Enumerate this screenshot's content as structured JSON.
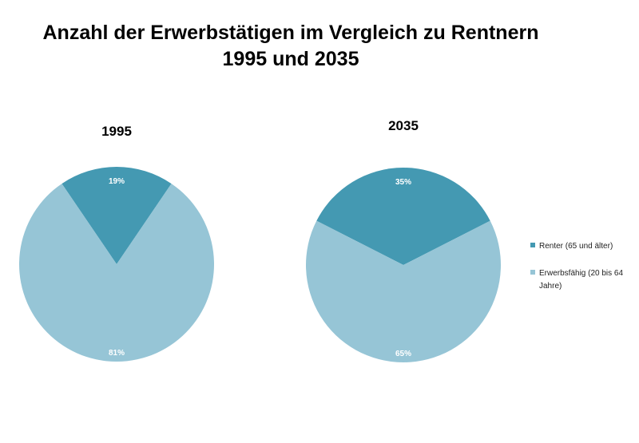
{
  "chart_data": {
    "type": "pie",
    "title_lines": [
      "Anzahl der Erwerbstätigen im Vergleich zu Rentnern",
      "1995 und 2035"
    ],
    "legend": {
      "placement": "right",
      "entries": [
        {
          "lines": [
            "Renter (65 und älter)"
          ],
          "color": "#4499b2"
        },
        {
          "lines": [
            "Erwerbsfähig (20 bis 64",
            "Jahre)"
          ],
          "color": "#96c5d6"
        }
      ]
    },
    "charts": [
      {
        "title": "1995",
        "slices": [
          {
            "category": "Renter (65 und älter)",
            "value": 19,
            "label": "19%",
            "color": "#4499b2"
          },
          {
            "category": "Erwerbsfähig (20 bis 64 Jahre)",
            "value": 81,
            "label": "81%",
            "color": "#96c5d6"
          }
        ]
      },
      {
        "title": "2035",
        "slices": [
          {
            "category": "Renter (65 und älter)",
            "value": 35,
            "label": "35%",
            "color": "#4499b2"
          },
          {
            "category": "Erwerbsfähig (20 bis 64 Jahre)",
            "value": 65,
            "label": "65%",
            "color": "#96c5d6"
          }
        ]
      }
    ]
  }
}
